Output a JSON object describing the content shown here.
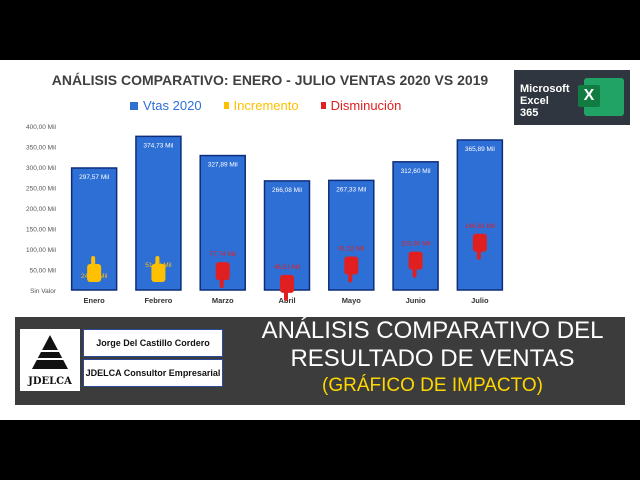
{
  "chart_data": {
    "type": "bar",
    "title": "ANÁLISIS COMPARATIVO: ENERO - JULIO VENTAS 2020 VS 2019",
    "categories": [
      "Enero",
      "Febrero",
      "Marzo",
      "Abril",
      "Mayo",
      "Junio",
      "Julio"
    ],
    "series": [
      {
        "name": "Vtas 2020",
        "values": [
          297.57,
          374.73,
          327.89,
          266.08,
          267.33,
          312.6,
          365.89
        ],
        "labels": [
          "297,57 Mil",
          "374,73 Mil",
          "327,89 Mil",
          "266,08 Mil",
          "267,33 Mil",
          "312,60 Mil",
          "365,89 Mil"
        ]
      },
      {
        "name": "Incremento",
        "values": [
          24.67,
          51.69,
          null,
          null,
          null,
          null,
          null
        ],
        "labels": [
          "24,67 Mil",
          "51,69 Mil",
          "",
          "",
          "",
          "",
          ""
        ]
      },
      {
        "name": "Disminución",
        "values": [
          null,
          null,
          77.74,
          46.51,
          91.52,
          103.3,
          146.81
        ],
        "labels": [
          "",
          "",
          "77,74 Mil",
          "46,51 Mil",
          "91,52 Mil",
          "103,30 Mil",
          "146,81 Mil"
        ]
      }
    ],
    "yticks": [
      "Sin Valor",
      "50,00 Mil",
      "100,00 Mil",
      "150,00 Mil",
      "200,00 Mil",
      "250,00 Mil",
      "300,00 Mil",
      "350,00 Mil",
      "400,00 Mil"
    ],
    "ylim": [
      0,
      400
    ],
    "grid": false,
    "legend_position": "top",
    "colors": {
      "bar": "#2e6fd6",
      "bar_border": "#0d2d7a",
      "increase": "#ffc000",
      "decrease": "#e02020",
      "bar_label": "#ffffff"
    }
  },
  "legend": {
    "vtas": "Vtas 2020",
    "incremento": "Incremento",
    "disminucion": "Disminución"
  },
  "badge": {
    "line1": "Microsoft",
    "line2": "Excel",
    "line3": "365",
    "icon": "X"
  },
  "banner": {
    "logo_text": "JDELCA",
    "author": "Jorge Del Castillo Cordero",
    "company": "JDELCA Consultor Empresarial",
    "title_line1": "ANÁLISIS COMPARATIVO DEL",
    "title_line2": "RESULTADO DE VENTAS",
    "subtitle": "(GRÁFICO DE IMPACTO)"
  }
}
